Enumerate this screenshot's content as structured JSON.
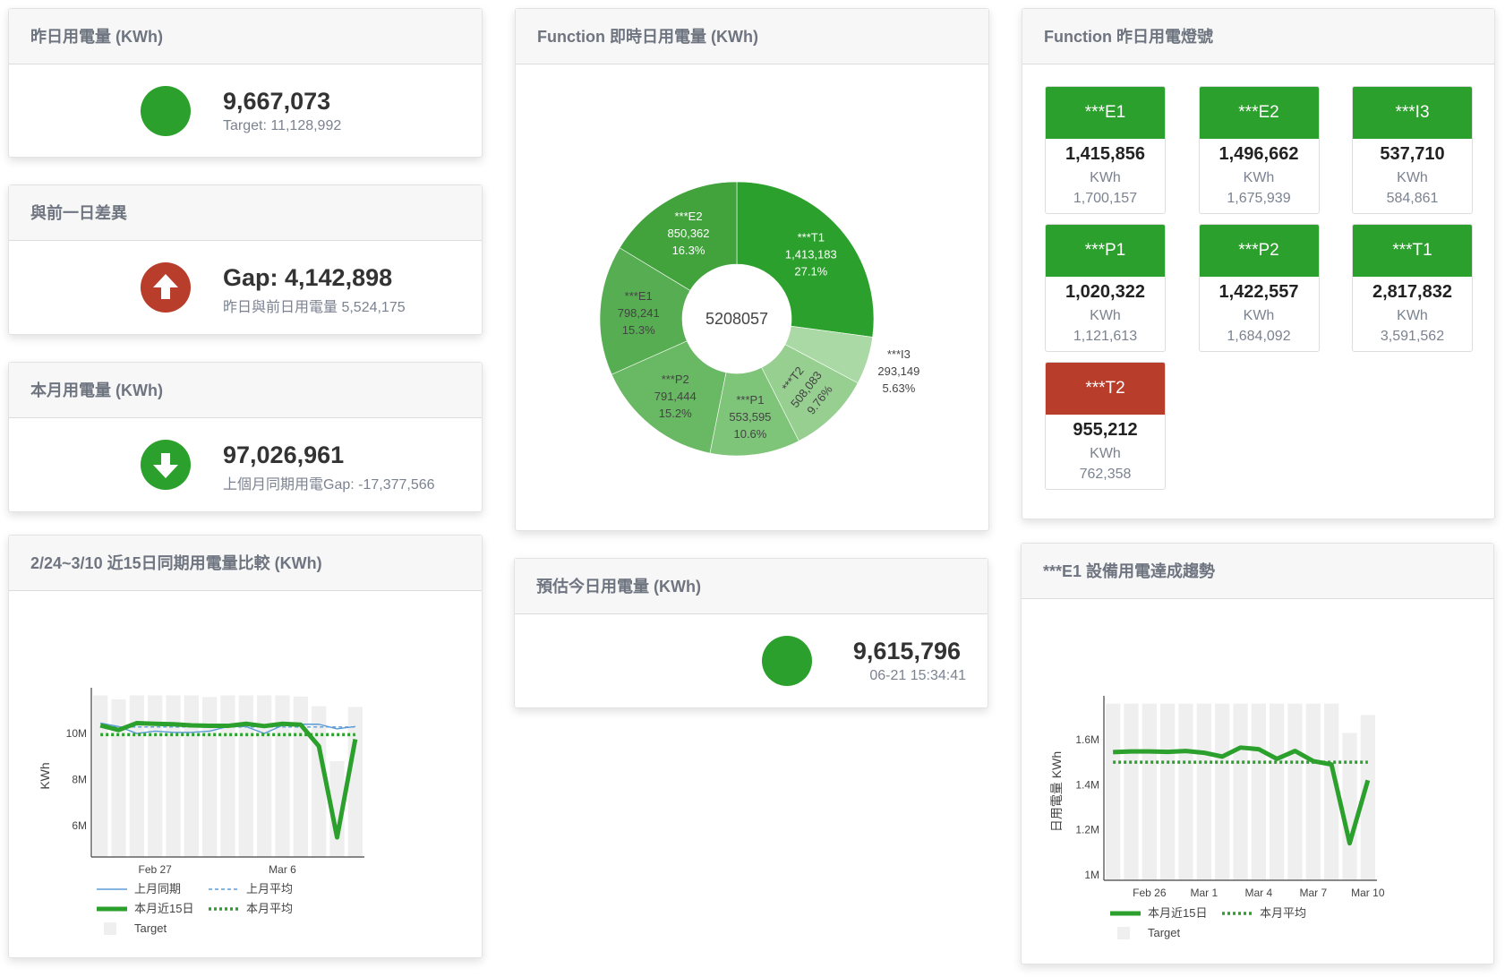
{
  "colors": {
    "green": "#2ca02c",
    "red": "#b93d2b",
    "target_bar": "#efefef",
    "last_month": "#5b9bd5"
  },
  "yesterday": {
    "title": "昨日用電量 (KWh)",
    "status": "green",
    "value": "9,667,073",
    "target": "Target: 11,128,992"
  },
  "diff": {
    "title": "與前一日差異",
    "icon": "arrow-up-circle-icon",
    "value": "Gap: 4,142,898",
    "sub": "昨日與前日用電量 5,524,175"
  },
  "month": {
    "title": "本月用電量 (KWh)",
    "icon": "arrow-down-circle-icon",
    "value": "97,026,961",
    "sub": "上個月同期用電Gap: -17,377,566"
  },
  "function_realtime": {
    "title": "Function 即時日用電量 (KWh)",
    "center_label": "5208057",
    "chart_data": {
      "type": "pie",
      "hole": true,
      "slices": [
        {
          "label": "***T1",
          "value": 1413183,
          "value_text": "1,413,183",
          "percent": "27.1%",
          "color": "#2ca02c"
        },
        {
          "label": "***I3",
          "value": 293149,
          "value_text": "293,149",
          "percent": "5.63%",
          "color": "#aad9a6"
        },
        {
          "label": "***T2",
          "value": 508083,
          "value_text": "508,083",
          "percent": "9.76%",
          "color": "#96cf90"
        },
        {
          "label": "***P1",
          "value": 553595,
          "value_text": "553,595",
          "percent": "10.6%",
          "color": "#7ec479"
        },
        {
          "label": "***P2",
          "value": 791444,
          "value_text": "791,444",
          "percent": "15.2%",
          "color": "#69b863"
        },
        {
          "label": "***E1",
          "value": 798241,
          "value_text": "798,241",
          "percent": "15.3%",
          "color": "#57ad51"
        },
        {
          "label": "***E2",
          "value": 850362,
          "value_text": "850,362",
          "percent": "16.3%",
          "color": "#42a33d"
        }
      ]
    }
  },
  "function_lights": {
    "title": "Function 昨日用電燈號",
    "tiles": [
      {
        "name": "***E1",
        "value": "1,415,856",
        "unit": "KWh",
        "ref": "1,700,157",
        "status": "green"
      },
      {
        "name": "***E2",
        "value": "1,496,662",
        "unit": "KWh",
        "ref": "1,675,939",
        "status": "green"
      },
      {
        "name": "***I3",
        "value": "537,710",
        "unit": "KWh",
        "ref": "584,861",
        "status": "green"
      },
      {
        "name": "***P1",
        "value": "1,020,322",
        "unit": "KWh",
        "ref": "1,121,613",
        "status": "green"
      },
      {
        "name": "***P2",
        "value": "1,422,557",
        "unit": "KWh",
        "ref": "1,684,092",
        "status": "green"
      },
      {
        "name": "***T1",
        "value": "2,817,832",
        "unit": "KWh",
        "ref": "3,591,562",
        "status": "green"
      },
      {
        "name": "***T2",
        "value": "955,212",
        "unit": "KWh",
        "ref": "762,358",
        "status": "red"
      }
    ]
  },
  "estimate": {
    "title": "預估今日用電量 (KWh)",
    "status": "green",
    "value": "9,615,796",
    "time": "06-21 15:34:41"
  },
  "compare15": {
    "title": "2/24~3/10 近15日同期用電量比較 (KWh)",
    "chart_data": {
      "type": "line",
      "x": [
        "Feb 24",
        "Feb 25",
        "Feb 26",
        "Feb 27",
        "Feb 28",
        "Mar 1",
        "Mar 2",
        "Mar 3",
        "Mar 4",
        "Mar 5",
        "Mar 6",
        "Mar 7",
        "Mar 8",
        "Mar 9",
        "Mar 10"
      ],
      "xticks": [
        "Feb 27",
        "Mar 6"
      ],
      "ylabel": "KWh",
      "yticks": [
        6000000,
        8000000,
        10000000
      ],
      "ytick_labels": [
        "6M",
        "8M",
        "10M"
      ],
      "ylim": [
        4650000,
        11670000
      ],
      "grid": false,
      "legend": "bottom",
      "series": [
        {
          "name": "上月同期",
          "style": "solid-thin",
          "color": "#5b9bd5",
          "values": [
            10450000,
            10300000,
            10000000,
            10100000,
            10050000,
            10050000,
            10100000,
            10300000,
            10300000,
            10000000,
            10350000,
            10400000,
            10400000,
            10200000,
            10300000
          ]
        },
        {
          "name": "上月平均",
          "style": "dashed",
          "color": "#5b9bd5",
          "values": [
            10280000,
            10280000,
            10280000,
            10280000,
            10280000,
            10280000,
            10280000,
            10280000,
            10280000,
            10280000,
            10280000,
            10280000,
            10280000,
            10280000,
            10280000
          ]
        },
        {
          "name": "本月近15日",
          "style": "solid-thick",
          "color": "#2ca02c",
          "values": [
            10350000,
            10150000,
            10450000,
            10420000,
            10400000,
            10350000,
            10330000,
            10330000,
            10420000,
            10320000,
            10420000,
            10380000,
            9450000,
            5500000,
            9750000
          ]
        },
        {
          "name": "本月平均",
          "style": "dotted",
          "color": "#2ca02c",
          "values": [
            9950000,
            9950000,
            9950000,
            9950000,
            9950000,
            9950000,
            9950000,
            9950000,
            9950000,
            9950000,
            9950000,
            9950000,
            9950000,
            9950000,
            9950000
          ]
        },
        {
          "name": "Target",
          "style": "bar",
          "color": "#efefef",
          "values": [
            11650000,
            11480000,
            11650000,
            11650000,
            11650000,
            11650000,
            11580000,
            11650000,
            11650000,
            11650000,
            11650000,
            11600000,
            11180000,
            8800000,
            11150000
          ]
        }
      ]
    }
  },
  "e1trend": {
    "title": "***E1 設備用電達成趨勢",
    "chart_data": {
      "type": "line",
      "x": [
        "Feb 24",
        "Feb 25",
        "Feb 26",
        "Feb 27",
        "Feb 28",
        "Mar 1",
        "Mar 2",
        "Mar 3",
        "Mar 4",
        "Mar 5",
        "Mar 6",
        "Mar 7",
        "Mar 8",
        "Mar 9",
        "Mar 10"
      ],
      "xticks": [
        "Feb 26",
        "Mar 1",
        "Mar 4",
        "Mar 7",
        "Mar 10"
      ],
      "ylabel": "日用電量 KWh",
      "yticks": [
        1000000,
        1200000,
        1400000,
        1600000
      ],
      "ytick_labels": [
        "1M",
        "1.2M",
        "1.4M",
        "1.6M"
      ],
      "ylim": [
        976000,
        1763000
      ],
      "grid": false,
      "legend": "bottom",
      "series": [
        {
          "name": "本月近15日",
          "style": "solid-thick",
          "color": "#2ca02c",
          "values": [
            1545000,
            1548000,
            1548000,
            1546000,
            1550000,
            1542000,
            1525000,
            1565000,
            1558000,
            1515000,
            1550000,
            1505000,
            1490000,
            1140000,
            1420000
          ]
        },
        {
          "name": "本月平均",
          "style": "dotted",
          "color": "#2ca02c",
          "values": [
            1500000,
            1500000,
            1500000,
            1500000,
            1500000,
            1500000,
            1500000,
            1500000,
            1500000,
            1500000,
            1500000,
            1500000,
            1500000,
            1500000,
            1500000
          ]
        },
        {
          "name": "Target",
          "style": "bar",
          "color": "#efefef",
          "values": [
            1760000,
            1760000,
            1760000,
            1760000,
            1760000,
            1760000,
            1760000,
            1760000,
            1760000,
            1760000,
            1760000,
            1760000,
            1760000,
            1630000,
            1710000
          ]
        }
      ]
    }
  }
}
